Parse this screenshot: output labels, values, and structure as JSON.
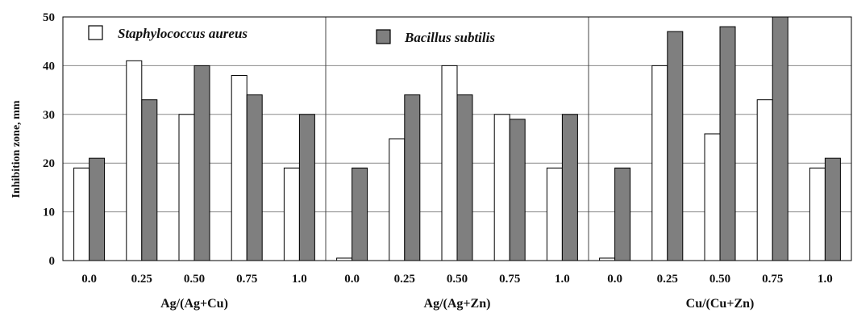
{
  "chart_data": {
    "type": "bar",
    "ylabel": "Inhibition zone, mm",
    "ylim": [
      0,
      50
    ],
    "yticks": [
      0,
      10,
      20,
      30,
      40,
      50
    ],
    "grid": true,
    "legend_position": "top",
    "categories": [
      "0.0",
      "0.25",
      "0.50",
      "0.75",
      "1.0"
    ],
    "series": [
      {
        "name": "Staphylococcus aureus",
        "color": "#ffffff"
      },
      {
        "name": "Bacillus subtilis",
        "color": "#7f7f7f"
      }
    ],
    "groups": [
      {
        "label": "Ag/(Ag+Cu)",
        "values": [
          [
            19,
            41,
            30,
            38,
            19
          ],
          [
            21,
            33,
            40,
            34,
            30
          ]
        ]
      },
      {
        "label": "Ag/(Ag+Zn)",
        "values": [
          [
            0.5,
            25,
            40,
            30,
            19
          ],
          [
            19,
            34,
            34,
            29,
            30
          ]
        ]
      },
      {
        "label": "Cu/(Cu+Zn)",
        "values": [
          [
            0.5,
            40,
            26,
            33,
            19
          ],
          [
            19,
            47,
            48,
            50,
            21
          ]
        ]
      }
    ]
  }
}
